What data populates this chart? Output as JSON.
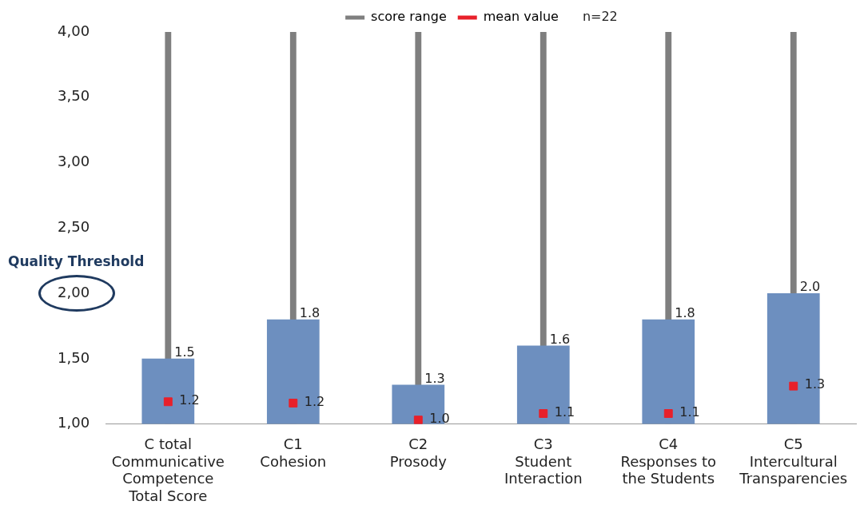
{
  "chart_data": {
    "type": "bar",
    "categories": [
      "C total\nCommunicative\nCompetence\nTotal Score",
      "C1\nCohesion",
      "C2\nProsody",
      "C3\nStudent\nInteraction",
      "C4\nResponses to\nthe Students",
      "C5\nIntercultural\nTransparencies"
    ],
    "series": [
      {
        "color": "#6d8fbf",
        "values": [
          1.5,
          1.8,
          1.3,
          1.6,
          1.8,
          2.0
        ],
        "value_labels": [
          "1.5",
          "1.8",
          "1.3",
          "1.6",
          "1.8",
          "2.0"
        ]
      },
      {
        "type": "bar",
        "name": "score range",
        "color": "#7f7f7f",
        "base": [
          1,
          1,
          1,
          1,
          1,
          1
        ],
        "values": [
          3,
          3,
          3,
          3,
          3,
          3
        ]
      },
      {
        "type": "scatter",
        "name": "mean value",
        "color": "#e8202a",
        "marker": "square",
        "values": [
          1.17,
          1.16,
          1.03,
          1.08,
          1.08,
          1.29
        ],
        "value_labels": [
          "1.2",
          "1.2",
          "1.0",
          "1.1",
          "1.1",
          "1.3"
        ]
      }
    ],
    "ylim": [
      1,
      4
    ],
    "yticks": [
      {
        "value": 1,
        "label": "1,00"
      },
      {
        "value": 1.5,
        "label": "1,50"
      },
      {
        "value": 2,
        "label": "2,00"
      },
      {
        "value": 2.5,
        "label": "2,50"
      },
      {
        "value": 3,
        "label": "3,00"
      },
      {
        "value": 3.5,
        "label": "3,50"
      },
      {
        "value": 4,
        "label": "4,00"
      }
    ],
    "grid": false,
    "legend": "top",
    "annotations": [
      "n=22",
      "Quality Threshold"
    ]
  }
}
